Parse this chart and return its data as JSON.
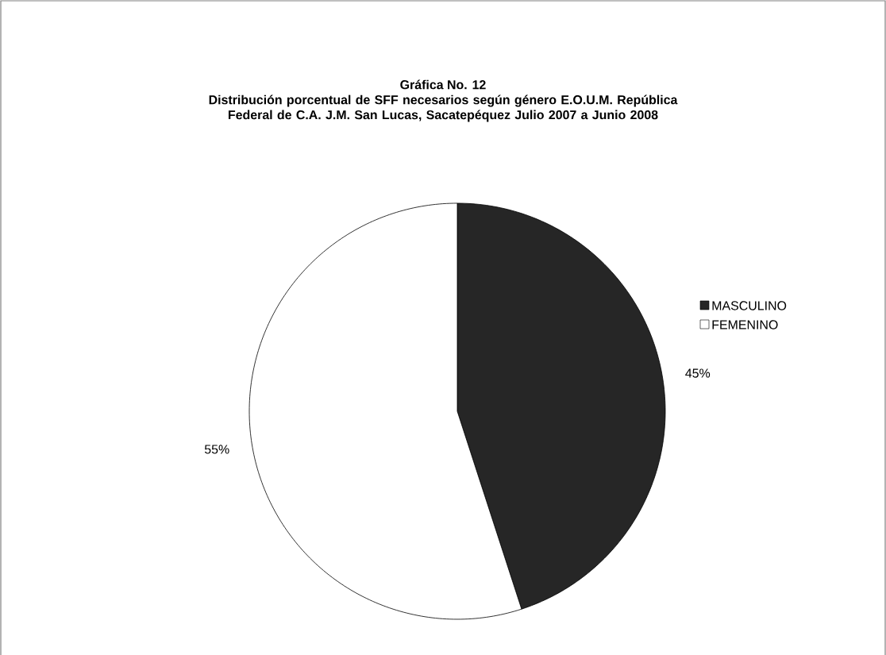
{
  "chart_data": {
    "type": "pie",
    "title": "Gráfica No. 12",
    "subtitle": "Distribución porcentual de SFF necesarios según género E.O.U.M. República Federal de C.A. J.M. San Lucas, Sacatepéquez Julio 2007 a Junio 2008",
    "categories": [
      "MASCULINO",
      "FEMENINO"
    ],
    "values": [
      45,
      55
    ],
    "value_labels": [
      "45%",
      "55%"
    ],
    "colors": [
      "#262626",
      "#ffffff"
    ],
    "legend": "right"
  }
}
